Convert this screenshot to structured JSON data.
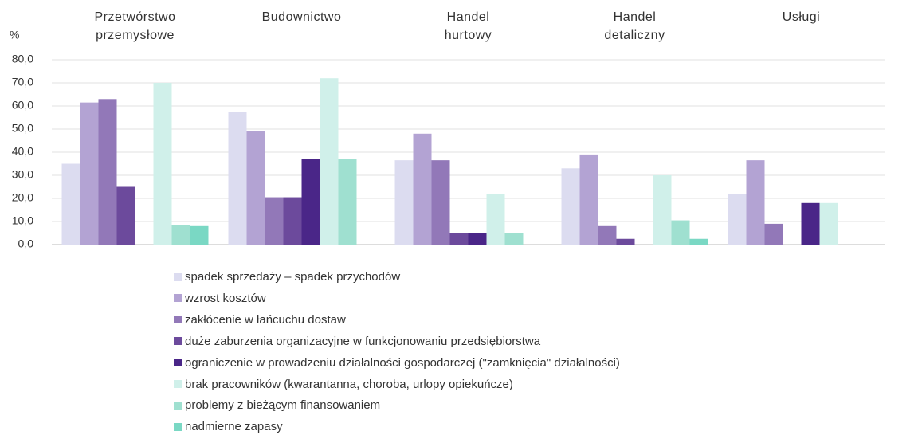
{
  "chart_data": {
    "type": "bar",
    "y_axis_label": "%",
    "categories": [
      "Przetwórstwo przemysłowe",
      "Budownictwo",
      "Handel hurtowy",
      "Handel detaliczny",
      "Usługi"
    ],
    "series": [
      {
        "name": "spadek sprzedaży – spadek przychodów",
        "color": "#dcdcf0",
        "values": [
          35,
          57.5,
          36.5,
          33,
          22
        ]
      },
      {
        "name": "wzrost kosztów",
        "color": "#b3a3d3",
        "values": [
          61.5,
          49,
          48,
          39,
          36.5
        ]
      },
      {
        "name": "zakłócenie w łańcuchu dostaw",
        "color": "#9278b8",
        "values": [
          63,
          20.5,
          36.5,
          8,
          9
        ]
      },
      {
        "name": "duże zaburzenia organizacyjne w funkcjonowaniu przedsiębiorstwa",
        "color": "#6c4a9c",
        "values": [
          25,
          20.5,
          5,
          2.5,
          0
        ]
      },
      {
        "name": "ograniczenie w prowadzeniu działalności gospodarczej (\"zamknięcia\" działalności)",
        "color": "#4a2688",
        "values": [
          0,
          37,
          5,
          0,
          18
        ]
      },
      {
        "name": "brak pracowników (kwarantanna, choroba, urlopy opiekuńcze)",
        "color": "#d0f0ea",
        "values": [
          70,
          72,
          22,
          30,
          18
        ]
      },
      {
        "name": "problemy z bieżącym finansowaniem",
        "color": "#9fe0d0",
        "values": [
          8.5,
          37,
          5,
          10.5,
          0
        ]
      },
      {
        "name": "nadmierne zapasy",
        "color": "#7ad8c4",
        "values": [
          8,
          0,
          0,
          2.5,
          0
        ]
      }
    ],
    "ylim": [
      0,
      80
    ],
    "yticks": [
      {
        "value": 0,
        "label": "0,0"
      },
      {
        "value": 10,
        "label": "10,0"
      },
      {
        "value": 20,
        "label": "20,0"
      },
      {
        "value": 30,
        "label": "30,0"
      },
      {
        "value": 40,
        "label": "40,0"
      },
      {
        "value": 50,
        "label": "50,0"
      },
      {
        "value": 60,
        "label": "60,0"
      },
      {
        "value": 70,
        "label": "70,0"
      },
      {
        "value": 80,
        "label": "80,0"
      }
    ],
    "grid": true,
    "legend": "bottom"
  }
}
